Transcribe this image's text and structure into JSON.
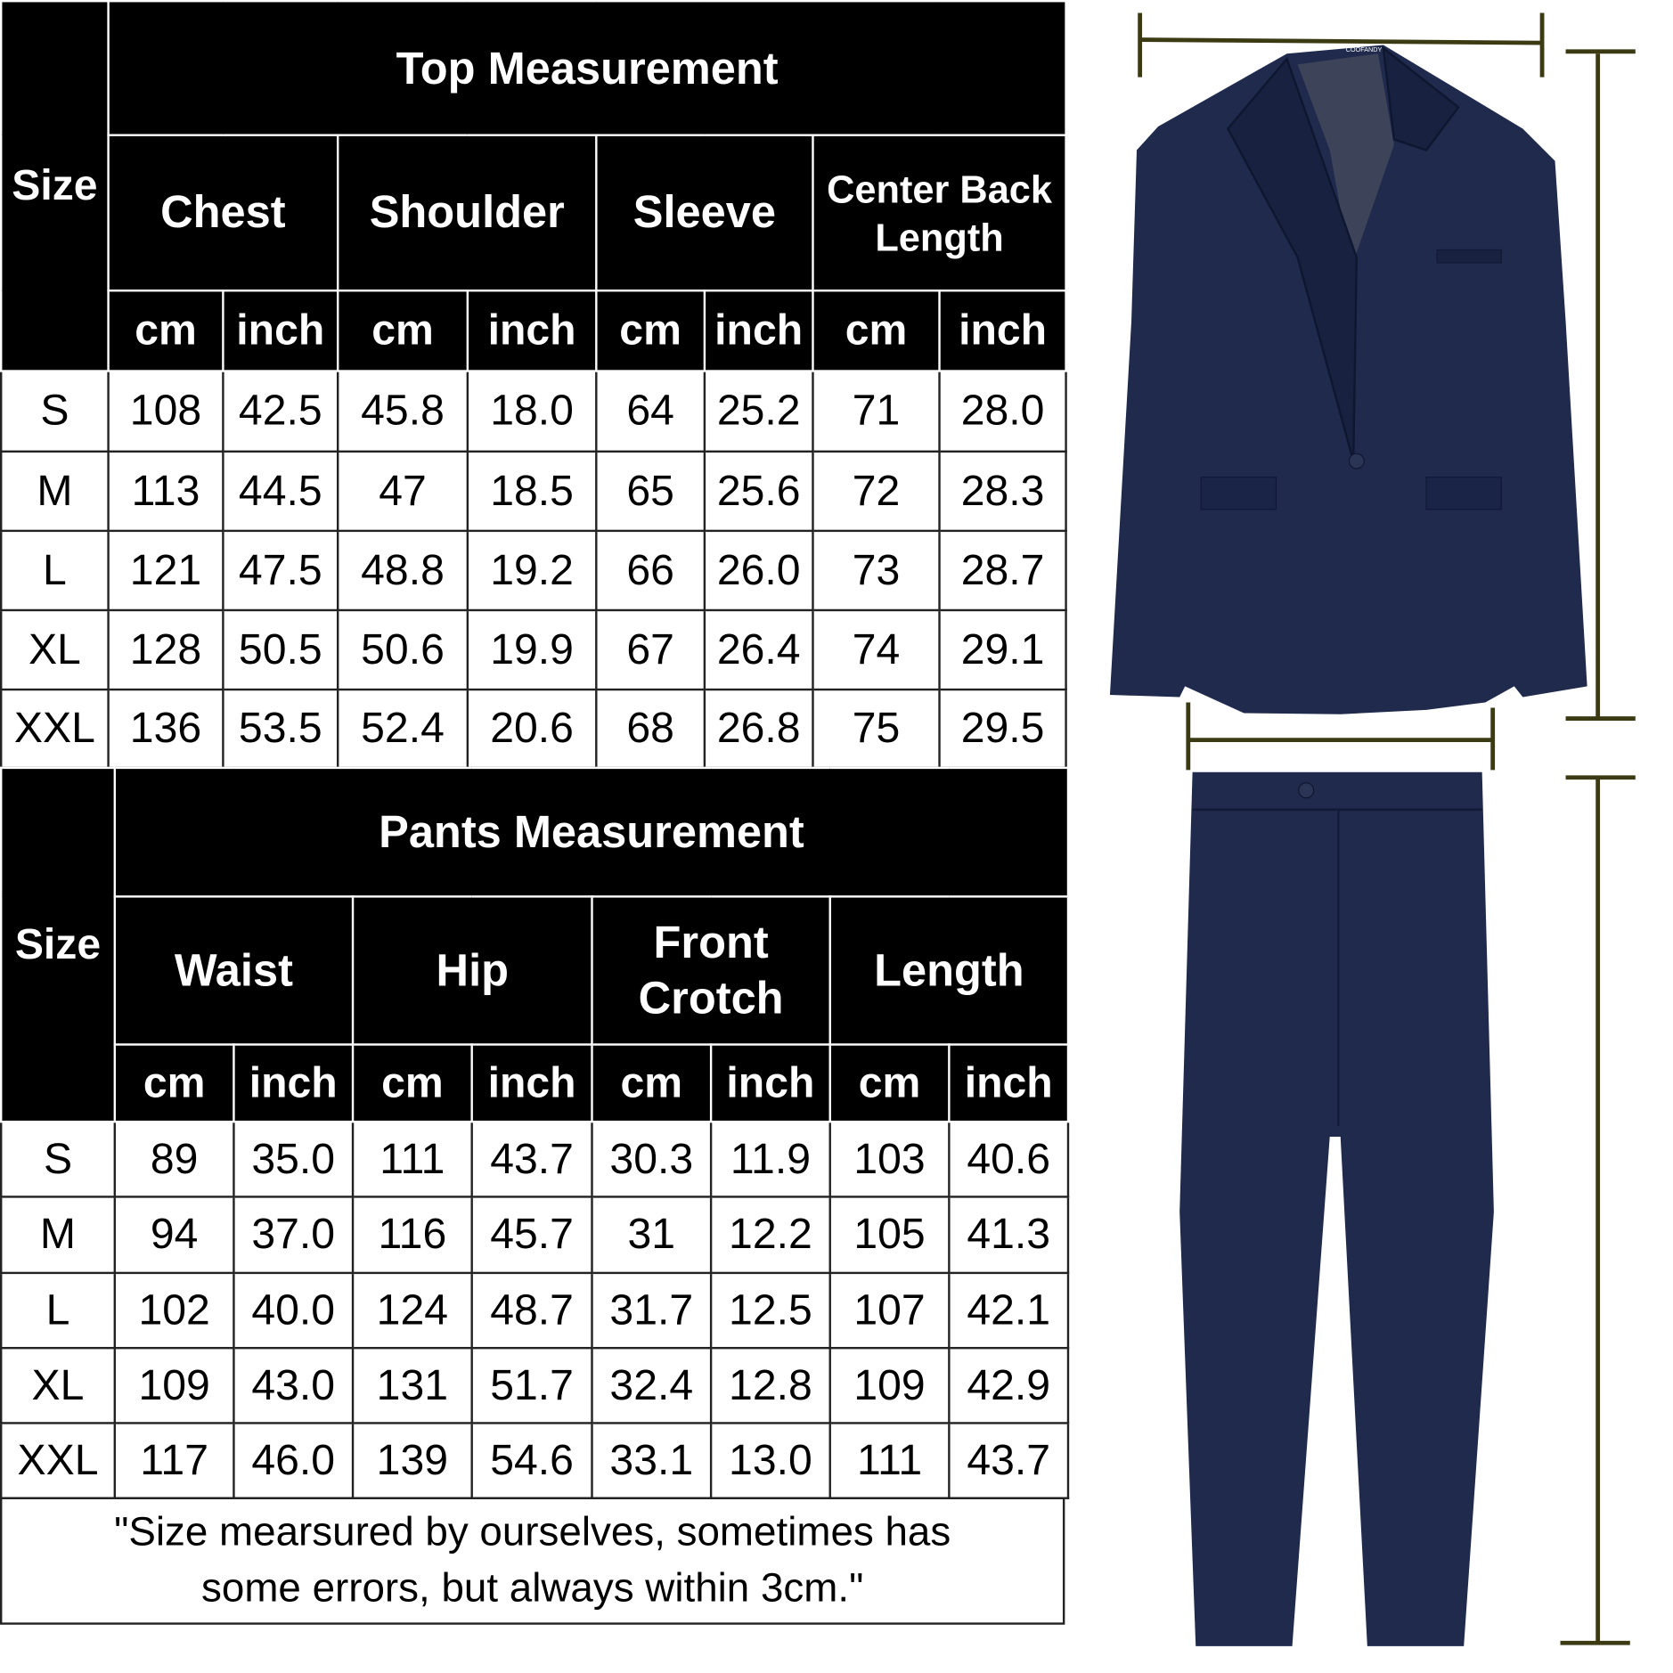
{
  "top": {
    "title": "Top Measurement",
    "size_label": "Size",
    "groups": [
      "Chest",
      "Shoulder",
      "Sleeve",
      "Center Back Length"
    ],
    "units": [
      "cm",
      "inch",
      "cm",
      "inch",
      "cm",
      "inch",
      "cm",
      "inch"
    ],
    "rows": [
      {
        "size": "S",
        "values": [
          "108",
          "42.5",
          "45.8",
          "18.0",
          "64",
          "25.2",
          "71",
          "28.0"
        ]
      },
      {
        "size": "M",
        "values": [
          "113",
          "44.5",
          "47",
          "18.5",
          "65",
          "25.6",
          "72",
          "28.3"
        ]
      },
      {
        "size": "L",
        "values": [
          "121",
          "47.5",
          "48.8",
          "19.2",
          "66",
          "26.0",
          "73",
          "28.7"
        ]
      },
      {
        "size": "XL",
        "values": [
          "128",
          "50.5",
          "50.6",
          "19.9",
          "67",
          "26.4",
          "74",
          "29.1"
        ]
      },
      {
        "size": "XXL",
        "values": [
          "136",
          "53.5",
          "52.4",
          "20.6",
          "68",
          "26.8",
          "75",
          "29.5"
        ]
      }
    ]
  },
  "pants": {
    "title": "Pants Measurement",
    "size_label": "Size",
    "groups": [
      "Waist",
      "Hip",
      "Front Crotch",
      "Length"
    ],
    "units": [
      "cm",
      "inch",
      "cm",
      "inch",
      "cm",
      "inch",
      "cm",
      "inch"
    ],
    "rows": [
      {
        "size": "S",
        "values": [
          "89",
          "35.0",
          "111",
          "43.7",
          "30.3",
          "11.9",
          "103",
          "40.6"
        ]
      },
      {
        "size": "M",
        "values": [
          "94",
          "37.0",
          "116",
          "45.7",
          "31",
          "12.2",
          "105",
          "41.3"
        ]
      },
      {
        "size": "L",
        "values": [
          "102",
          "40.0",
          "124",
          "48.7",
          "31.7",
          "12.5",
          "107",
          "42.1"
        ]
      },
      {
        "size": "XL",
        "values": [
          "109",
          "43.0",
          "131",
          "51.7",
          "32.4",
          "12.8",
          "109",
          "42.9"
        ]
      },
      {
        "size": "XXL",
        "values": [
          "117",
          "46.0",
          "139",
          "54.6",
          "33.1",
          "13.0",
          "111",
          "43.7"
        ]
      }
    ]
  },
  "note": "\"Size mearsured by ourselves, sometimes has\nsome errors, but always within 3cm.\"",
  "illustration": {
    "suit_color": "#1f2a4d",
    "measure_line_color": "#3b3a12",
    "label_text": "COOFANDY"
  }
}
